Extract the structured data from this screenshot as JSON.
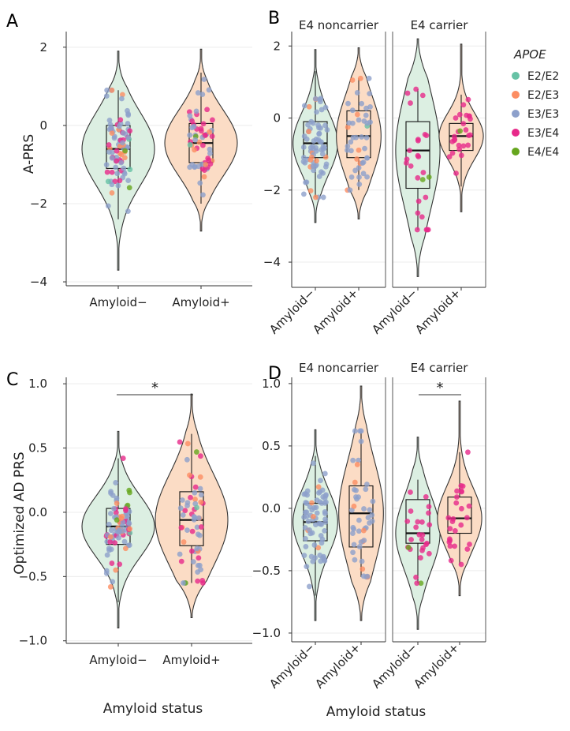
{
  "colors": {
    "amyloid_neg_fill": "#dcefe2",
    "amyloid_pos_fill": "#fbdcc5",
    "E2/E2": "#66c2a5",
    "E2/E3": "#fc8d62",
    "E3/E3": "#8da0cb",
    "E3/E4": "#e7298a",
    "E4/E4": "#66a61e"
  },
  "legend": {
    "title": "APOE",
    "items": [
      {
        "label": "E2/E2",
        "color": "#66c2a5"
      },
      {
        "label": "E2/E3",
        "color": "#fc8d62"
      },
      {
        "label": "E3/E3",
        "color": "#8da0cb"
      },
      {
        "label": "E3/E4",
        "color": "#e7298a"
      },
      {
        "label": "E4/E4",
        "color": "#66a61e"
      }
    ]
  },
  "shared_xlabel": "Amyloid status",
  "chart_data": [
    {
      "panel": "A",
      "type": "violin",
      "ylabel": "A-PRS",
      "ylim": [
        -4.1,
        2.4
      ],
      "yticks": [
        2,
        0,
        -2,
        -4
      ],
      "ytick_labels": [
        "2",
        "0",
        "−2",
        "−4"
      ],
      "facets": [
        {
          "strip": "",
          "groups": [
            {
              "label": "Amyloid−",
              "min": -3.7,
              "max": 1.9,
              "q1": -1.1,
              "median": -0.6,
              "q3": 0.0,
              "whisker_low": -2.4,
              "whisker_high": 0.9
            },
            {
              "label": "Amyloid+",
              "min": -2.7,
              "max": 1.95,
              "q1": -0.95,
              "median": -0.45,
              "q3": 0.05,
              "whisker_low": -2.0,
              "whisker_high": 1.35
            }
          ]
        }
      ]
    },
    {
      "panel": "B",
      "type": "violin",
      "ylabel": "",
      "ylim": [
        -4.7,
        2.4
      ],
      "yticks": [
        2,
        0,
        -2,
        -4
      ],
      "ytick_labels": [
        "2",
        "0",
        "−2",
        "−4"
      ],
      "facets": [
        {
          "strip": "E4 noncarrier",
          "groups": [
            {
              "label": "Amyloid−",
              "min": -2.9,
              "max": 1.9,
              "q1": -1.1,
              "median": -0.7,
              "q3": -0.1,
              "whisker_low": -2.2,
              "whisker_high": 1.3
            },
            {
              "label": "Amyloid+",
              "min": -2.8,
              "max": 1.95,
              "q1": -1.1,
              "median": -0.5,
              "q3": 0.2,
              "whisker_low": -2.0,
              "whisker_high": 1.1
            }
          ]
        },
        {
          "strip": "E4 carrier",
          "groups": [
            {
              "label": "Amyloid−",
              "min": -4.4,
              "max": 2.2,
              "q1": -1.95,
              "median": -0.9,
              "q3": -0.1,
              "whisker_low": -3.1,
              "whisker_high": 0.8
            },
            {
              "label": "Amyloid+",
              "min": -2.6,
              "max": 2.05,
              "q1": -0.9,
              "median": -0.5,
              "q3": -0.15,
              "whisker_low": -1.9,
              "whisker_high": 0.65
            }
          ]
        }
      ]
    },
    {
      "panel": "C",
      "type": "violin",
      "ylabel": "Optimized AD PRS",
      "ylim": [
        -1.02,
        1.05
      ],
      "yticks": [
        1.0,
        0.5,
        0.0,
        -0.5,
        -1.0
      ],
      "ytick_labels": [
        "1.0",
        "0.5",
        "0.0",
        "−0.5",
        "−1.0"
      ],
      "significance": "*",
      "facets": [
        {
          "strip": "",
          "groups": [
            {
              "label": "Amyloid−",
              "min": -0.9,
              "max": 0.63,
              "q1": -0.25,
              "median": -0.11,
              "q3": 0.03,
              "whisker_low": -0.7,
              "whisker_high": 0.42
            },
            {
              "label": "Amyloid+",
              "min": -0.82,
              "max": 0.92,
              "q1": -0.26,
              "median": -0.06,
              "q3": 0.16,
              "whisker_low": -0.55,
              "whisker_high": 0.61
            }
          ]
        }
      ]
    },
    {
      "panel": "D",
      "type": "violin",
      "ylabel": "",
      "ylim": [
        -1.07,
        1.05
      ],
      "yticks": [
        1.0,
        0.5,
        0.0,
        -0.5,
        -1.0
      ],
      "ytick_labels": [
        "1.0",
        "0.5",
        "0.0",
        "−0.5",
        "−1.0"
      ],
      "facets": [
        {
          "strip": "E4 noncarrier",
          "groups": [
            {
              "label": "Amyloid−",
              "min": -0.9,
              "max": 0.63,
              "q1": -0.26,
              "median": -0.11,
              "q3": 0.04,
              "whisker_low": -0.7,
              "whisker_high": 0.42
            },
            {
              "label": "Amyloid+",
              "min": -0.9,
              "max": 0.98,
              "q1": -0.31,
              "median": -0.04,
              "q3": 0.18,
              "whisker_low": -0.55,
              "whisker_high": 0.62
            }
          ]
        },
        {
          "strip": "E4 carrier",
          "significance": "*",
          "groups": [
            {
              "label": "Amyloid−",
              "min": -0.97,
              "max": 0.57,
              "q1": -0.28,
              "median": -0.2,
              "q3": 0.07,
              "whisker_low": -0.6,
              "whisker_high": 0.23
            },
            {
              "label": "Amyloid+",
              "min": -0.7,
              "max": 0.86,
              "q1": -0.2,
              "median": -0.08,
              "q3": 0.09,
              "whisker_low": -0.45,
              "whisker_high": 0.45
            }
          ]
        }
      ]
    }
  ]
}
